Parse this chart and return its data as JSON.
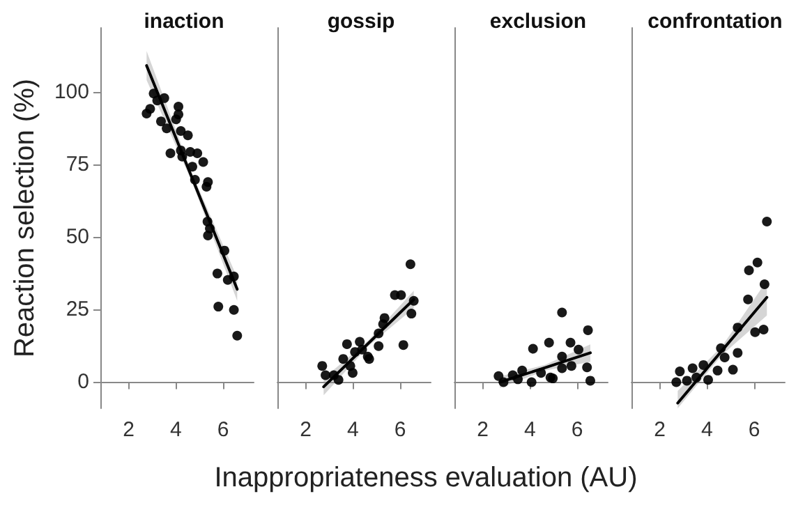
{
  "chart_data": [
    {
      "type": "scatter",
      "title": "inaction",
      "ylabel": "Reaction selection (%)",
      "xlabel": "Inappropriateness evaluation (AU)",
      "xlim": [
        0.8,
        7.3
      ],
      "xticks": [
        2,
        4,
        6
      ],
      "ylim": [
        -9,
        122
      ],
      "yticks": [
        0,
        25,
        50,
        75,
        100
      ],
      "grid": false,
      "marker": "circle",
      "series": [
        {
          "color": "#000000",
          "x": [
            2.76,
            2.91,
            3.06,
            3.21,
            3.51,
            3.37,
            3.61,
            3.77,
            4.01,
            4.11,
            4.11,
            4.21,
            4.51,
            4.21,
            4.27,
            4.61,
            4.91,
            5.16,
            4.7,
            4.81,
            5.36,
            5.3,
            5.34,
            5.36,
            5.44,
            6.06,
            5.76,
            6.2,
            6.46,
            5.8,
            6.46,
            6.6
          ],
          "values": [
            92.5,
            94.1,
            99.4,
            97,
            97.8,
            89.8,
            87.4,
            78.8,
            90.5,
            94.9,
            92.2,
            86.5,
            85,
            79.8,
            77.7,
            79.3,
            78.8,
            75.8,
            74.2,
            69.7,
            68.9,
            67.3,
            55.3,
            50.5,
            52.9,
            45.3,
            37.4,
            35.2,
            36.4,
            26,
            24.9,
            16
          ]
        },
        {
          "type": "line",
          "marker": "none",
          "color": "#000000",
          "line_style": "solid",
          "x": [
            2.76,
            4.68,
            6.6
          ],
          "values": [
            109,
            70.5,
            32
          ],
          "lower": [
            104,
            69,
            28
          ],
          "upper": [
            114,
            72,
            36
          ]
        }
      ]
    },
    {
      "type": "scatter",
      "title": "gossip",
      "xlim": [
        0.8,
        7.3
      ],
      "xticks": [
        2,
        4,
        6
      ],
      "ylim": [
        -9,
        122
      ],
      "yticks": [
        0,
        25,
        50,
        75,
        100
      ],
      "grid": false,
      "marker": "circle",
      "tick_labels": "x",
      "series": [
        {
          "color": "#000000",
          "x": [
            6.44,
            5.78,
            6.04,
            6.58,
            6.48,
            5.34,
            5.28,
            5.09,
            6.14,
            5.09,
            3.75,
            4.29,
            4.39,
            4.63,
            4.69,
            4.09,
            3.59,
            3.99,
            2.7,
            2.84,
            3.39,
            3.19,
            3.89
          ],
          "values": [
            40.6,
            30,
            30,
            28,
            23.6,
            22.1,
            20,
            16.8,
            12.8,
            12.4,
            13.1,
            13.9,
            11.2,
            8.8,
            8,
            10.4,
            8,
            3.2,
            5.6,
            2.4,
            0.8,
            2.4,
            5.6
          ]
        },
        {
          "type": "line",
          "marker": "none",
          "color": "#000000",
          "line_style": "solid",
          "x": [
            2.76,
            4.67,
            6.58
          ],
          "values": [
            -1.6,
            13.5,
            28.5
          ],
          "lower": [
            -4.5,
            12.5,
            25.5
          ],
          "upper": [
            1.3,
            14.5,
            31.5
          ]
        }
      ]
    },
    {
      "type": "scatter",
      "title": "exclusion",
      "xlim": [
        0.8,
        7.3
      ],
      "xticks": [
        2,
        4,
        6
      ],
      "ylim": [
        -9,
        122
      ],
      "yticks": [
        0,
        25,
        50,
        75,
        100
      ],
      "grid": false,
      "marker": "circle",
      "tick_labels": "x",
      "series": [
        {
          "color": "#000000",
          "x": [
            5.36,
            6.46,
            4.13,
            4.81,
            5.72,
            6.06,
            5.36,
            6.42,
            6.56,
            4.97,
            4.87,
            5.36,
            5.76,
            4.47,
            4.07,
            3.67,
            3.27,
            2.67,
            2.88,
            3.49
          ],
          "values": [
            24,
            17.9,
            11.5,
            13.6,
            13.6,
            11.2,
            8.8,
            5.1,
            0.5,
            1.3,
            1.6,
            4.8,
            5.6,
            3.2,
            0,
            4,
            2.4,
            2.1,
            0,
            1
          ]
        },
        {
          "type": "line",
          "marker": "none",
          "color": "#000000",
          "line_style": "solid",
          "x": [
            2.73,
            4.65,
            6.56
          ],
          "values": [
            0,
            5,
            10.1
          ],
          "lower": [
            -2,
            4,
            7
          ],
          "upper": [
            2,
            6,
            13
          ]
        }
      ]
    },
    {
      "type": "scatter",
      "title": "confrontation",
      "xlim": [
        0.8,
        7.3
      ],
      "xticks": [
        2,
        4,
        6
      ],
      "ylim": [
        -9,
        122
      ],
      "yticks": [
        0,
        25,
        50,
        75,
        100
      ],
      "grid": false,
      "marker": "circle",
      "tick_labels": "x",
      "series": [
        {
          "color": "#000000",
          "x": [
            6.54,
            6.14,
            5.78,
            6.44,
            5.74,
            6.04,
            6.4,
            5.3,
            5.3,
            5.1,
            4.75,
            4.59,
            4.45,
            4.05,
            3.85,
            3.39,
            2.85,
            2.7,
            3.15,
            3.55
          ],
          "values": [
            55.3,
            41.2,
            38.5,
            33.7,
            28.5,
            17.2,
            18.1,
            18.8,
            10.1,
            4.3,
            8.5,
            11.7,
            4,
            0.8,
            5.9,
            4.8,
            3.7,
            0,
            0.5,
            1.6
          ]
        },
        {
          "type": "line",
          "marker": "none",
          "color": "#000000",
          "line_style": "solid",
          "x": [
            2.76,
            4.65,
            6.54
          ],
          "values": [
            -7.2,
            11,
            29.2
          ],
          "lower": [
            -9,
            9.5,
            23
          ],
          "upper": [
            -3,
            12.5,
            35
          ]
        }
      ]
    }
  ]
}
